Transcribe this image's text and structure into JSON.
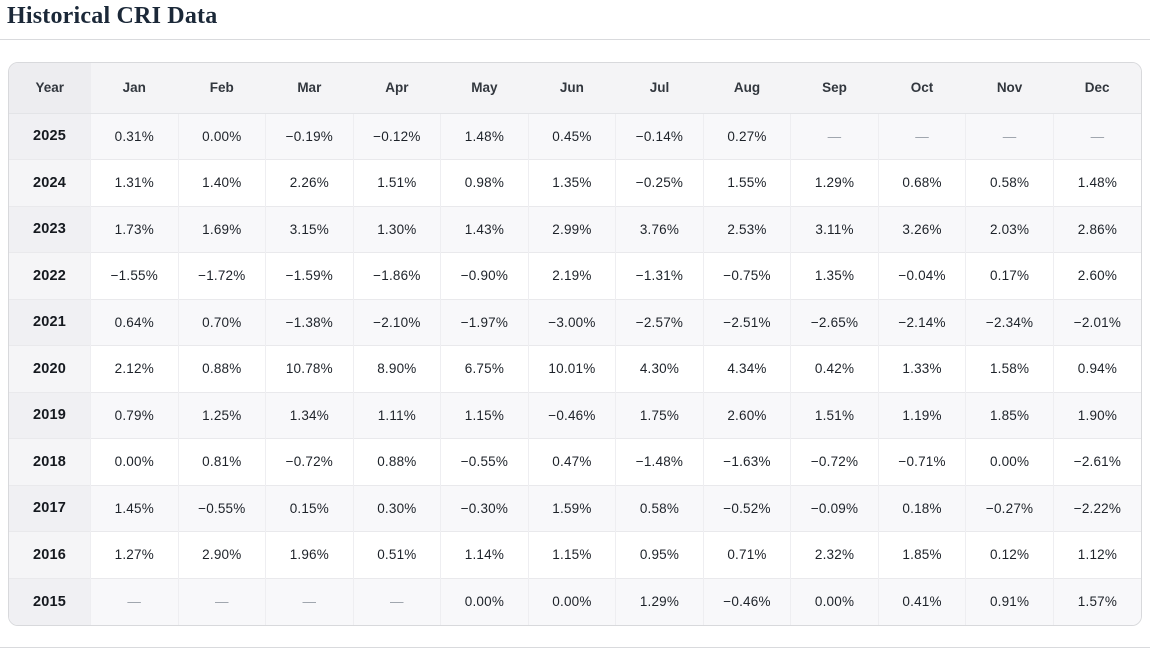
{
  "title": "Historical CRI Data",
  "table": {
    "columns": [
      "Year",
      "Jan",
      "Feb",
      "Mar",
      "Apr",
      "May",
      "Jun",
      "Jul",
      "Aug",
      "Sep",
      "Oct",
      "Nov",
      "Dec"
    ],
    "missing_placeholder": "—",
    "rows": [
      {
        "year": "2025",
        "values": [
          "0.31%",
          "0.00%",
          "−0.19%",
          "−0.12%",
          "1.48%",
          "0.45%",
          "−0.14%",
          "0.27%",
          "—",
          "—",
          "—",
          "—"
        ]
      },
      {
        "year": "2024",
        "values": [
          "1.31%",
          "1.40%",
          "2.26%",
          "1.51%",
          "0.98%",
          "1.35%",
          "−0.25%",
          "1.55%",
          "1.29%",
          "0.68%",
          "0.58%",
          "1.48%"
        ]
      },
      {
        "year": "2023",
        "values": [
          "1.73%",
          "1.69%",
          "3.15%",
          "1.30%",
          "1.43%",
          "2.99%",
          "3.76%",
          "2.53%",
          "3.11%",
          "3.26%",
          "2.03%",
          "2.86%"
        ]
      },
      {
        "year": "2022",
        "values": [
          "−1.55%",
          "−1.72%",
          "−1.59%",
          "−1.86%",
          "−0.90%",
          "2.19%",
          "−1.31%",
          "−0.75%",
          "1.35%",
          "−0.04%",
          "0.17%",
          "2.60%"
        ]
      },
      {
        "year": "2021",
        "values": [
          "0.64%",
          "0.70%",
          "−1.38%",
          "−2.10%",
          "−1.97%",
          "−3.00%",
          "−2.57%",
          "−2.51%",
          "−2.65%",
          "−2.14%",
          "−2.34%",
          "−2.01%"
        ]
      },
      {
        "year": "2020",
        "values": [
          "2.12%",
          "0.88%",
          "10.78%",
          "8.90%",
          "6.75%",
          "10.01%",
          "4.30%",
          "4.34%",
          "0.42%",
          "1.33%",
          "1.58%",
          "0.94%"
        ]
      },
      {
        "year": "2019",
        "values": [
          "0.79%",
          "1.25%",
          "1.34%",
          "1.11%",
          "1.15%",
          "−0.46%",
          "1.75%",
          "2.60%",
          "1.51%",
          "1.19%",
          "1.85%",
          "1.90%"
        ]
      },
      {
        "year": "2018",
        "values": [
          "0.00%",
          "0.81%",
          "−0.72%",
          "0.88%",
          "−0.55%",
          "0.47%",
          "−1.48%",
          "−1.63%",
          "−0.72%",
          "−0.71%",
          "0.00%",
          "−2.61%"
        ]
      },
      {
        "year": "2017",
        "values": [
          "1.45%",
          "−0.55%",
          "0.15%",
          "0.30%",
          "−0.30%",
          "1.59%",
          "0.58%",
          "−0.52%",
          "−0.09%",
          "0.18%",
          "−0.27%",
          "−2.22%"
        ]
      },
      {
        "year": "2016",
        "values": [
          "1.27%",
          "2.90%",
          "1.96%",
          "0.51%",
          "1.14%",
          "1.15%",
          "0.95%",
          "0.71%",
          "2.32%",
          "1.85%",
          "0.12%",
          "1.12%"
        ]
      },
      {
        "year": "2015",
        "values": [
          "—",
          "—",
          "—",
          "—",
          "0.00%",
          "0.00%",
          "1.29%",
          "−0.46%",
          "0.00%",
          "0.41%",
          "0.91%",
          "1.57%"
        ]
      }
    ]
  },
  "colors": {
    "title_text": "#1b2838",
    "header_bg": "#f4f4f6",
    "year_column_bg": "#f0f0f3",
    "striped_row_bg": "#f8f8fa",
    "border": "#d8d9dc",
    "cell_text": "#1d2229",
    "missing_text": "#9aa0a8"
  }
}
